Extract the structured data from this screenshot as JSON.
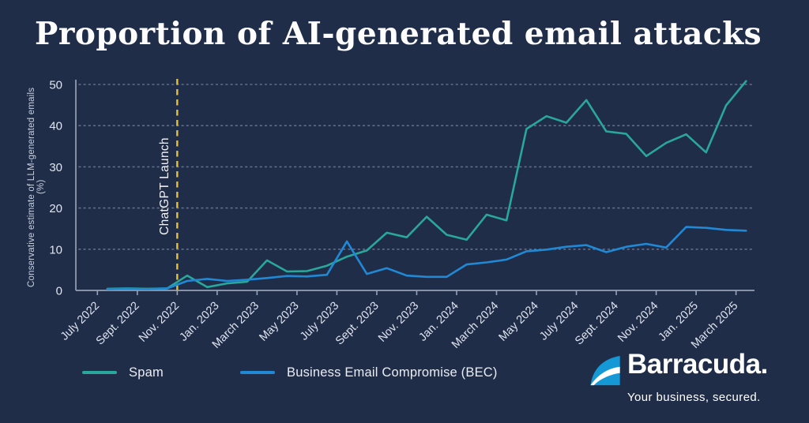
{
  "poster": {
    "title": "Proportion of AI-generated email attacks",
    "background_color": "#202d49"
  },
  "chart_data": {
    "type": "line",
    "title": "Proportion of AI-generated email attacks",
    "xlabel": "",
    "ylabel": "Conservative estimate of LLM-generated emails (%)",
    "ylim": [
      0,
      50
    ],
    "yticks": [
      0,
      10,
      20,
      30,
      40,
      50
    ],
    "grid": "horizontal-dotted",
    "legend_position": "bottom-left",
    "x_tick_labels": [
      "July 2022",
      "Sept. 2022",
      "Nov. 2022",
      "Jan. 2023",
      "March 2023",
      "May 2023",
      "July 2023",
      "Sept. 2023",
      "Nov. 2023",
      "Jan. 2024",
      "March 2024",
      "May 2024",
      "July 2024",
      "Sept. 2024",
      "Nov. 2024",
      "Jan. 2025",
      "March 2025"
    ],
    "x": [
      "July 2022",
      "Aug. 2022",
      "Sept. 2022",
      "Oct. 2022",
      "Nov. 2022",
      "Dec. 2022",
      "Jan. 2023",
      "Feb. 2023",
      "March 2023",
      "April 2023",
      "May 2023",
      "June 2023",
      "July 2023",
      "Aug. 2023",
      "Sept. 2023",
      "Oct. 2023",
      "Nov. 2023",
      "Dec. 2023",
      "Jan. 2024",
      "Feb. 2024",
      "March 2024",
      "April 2024",
      "May 2024",
      "June 2024",
      "July 2024",
      "Aug. 2024",
      "Sept. 2024",
      "Oct. 2024",
      "Nov. 2024",
      "Dec. 2024",
      "Jan. 2025",
      "Feb. 2025",
      "March 2025"
    ],
    "series": [
      {
        "name": "Spam",
        "color": "#29a79b",
        "values": [
          0.4,
          0.5,
          0.4,
          0.5,
          3.6,
          0.8,
          1.7,
          2.1,
          7.3,
          4.6,
          4.7,
          6.0,
          8.2,
          9.7,
          14.0,
          12.9,
          17.9,
          13.5,
          12.3,
          18.4,
          17.0,
          39.2,
          42.3,
          40.7,
          46.2,
          38.6,
          38.0,
          32.6,
          35.8,
          37.9,
          33.5,
          44.9,
          50.8
        ]
      },
      {
        "name": "Business Email Compromise (BEC)",
        "color": "#2089d5",
        "values": [
          0.3,
          0.4,
          0.3,
          0.5,
          2.3,
          2.8,
          2.3,
          2.6,
          3.0,
          3.5,
          3.4,
          3.8,
          11.9,
          4.0,
          5.4,
          3.6,
          3.3,
          3.3,
          6.3,
          6.8,
          7.5,
          9.5,
          9.9,
          10.6,
          11.0,
          9.3,
          10.6,
          11.3,
          10.4,
          15.4,
          15.2,
          14.7,
          14.5
        ]
      }
    ],
    "annotation": {
      "label": "ChatGPT Launch",
      "x": "Nov. 2022",
      "style": "dashed-vertical-line",
      "color": "#e6c13c"
    }
  },
  "legend": {
    "items": [
      {
        "label": "Spam",
        "color": "#29a79b"
      },
      {
        "label": "Business Email Compromise (BEC)",
        "color": "#2089d5"
      }
    ]
  },
  "branding": {
    "logo_text": "Barracuda.",
    "tagline": "Your business, secured.",
    "logo_color": "#1598d6"
  }
}
